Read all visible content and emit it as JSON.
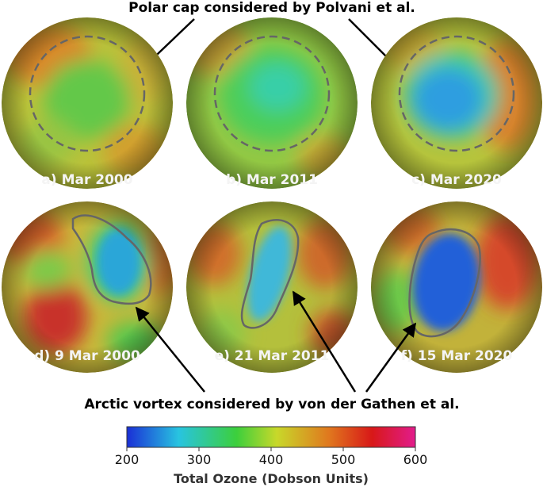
{
  "annotations": {
    "top": "Polar cap considered by Polvani et al.",
    "bottom": "Arctic vortex considered by von der Gathen et al."
  },
  "panels": [
    {
      "label": "a) Mar 2000"
    },
    {
      "label": "b) Mar 2011"
    },
    {
      "label": "c) Mar 2020"
    },
    {
      "label": "d) 9 Mar 2000"
    },
    {
      "label": "e) 21 Mar 2011"
    },
    {
      "label": "f) 15 Mar 2020"
    }
  ],
  "colorbar": {
    "title": "Total Ozone (Dobson Units)",
    "range": [
      200,
      600
    ],
    "ticks": [
      "200",
      "300",
      "400",
      "500",
      "600"
    ],
    "colors": [
      "#1a2fd6",
      "#28c4e0",
      "#3ccf3c",
      "#c8d82a",
      "#e0781e",
      "#d81818",
      "#e21c8c"
    ]
  }
}
